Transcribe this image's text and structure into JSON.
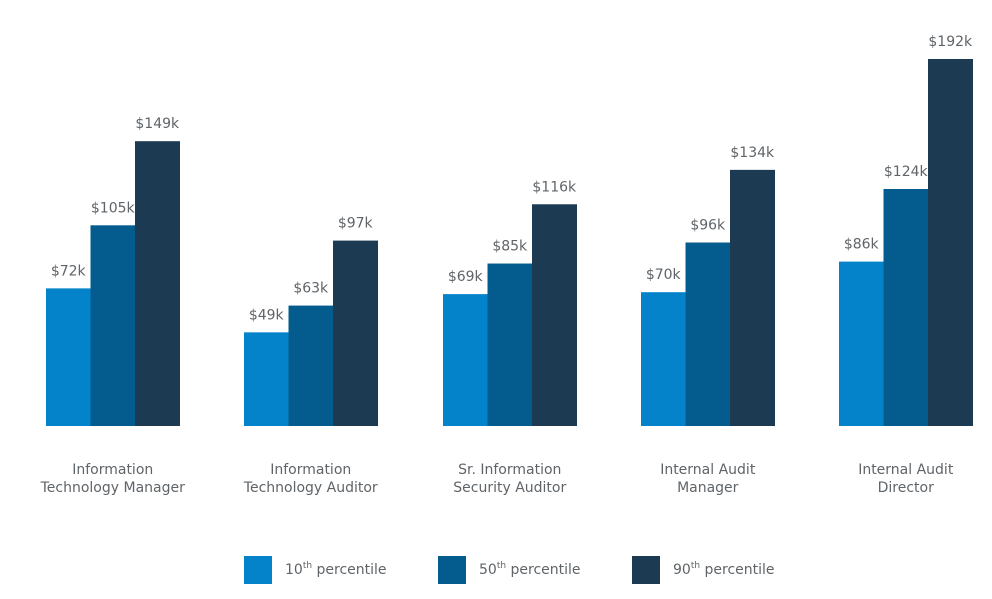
{
  "chart_data": {
    "type": "bar",
    "categories": [
      [
        "Information",
        "Technology Manager"
      ],
      [
        "Information",
        "Technology Auditor"
      ],
      [
        "Sr. Information",
        "Security Auditor"
      ],
      [
        "Internal Audit",
        "Manager"
      ],
      [
        "Internal Audit",
        "Director"
      ]
    ],
    "series": [
      {
        "name": "10th percentile",
        "legend_ordinal": "10",
        "legend_suffix": "th",
        "legend_word": "percentile",
        "color": "#0583ca",
        "values": [
          72,
          49,
          69,
          70,
          86
        ],
        "labels": [
          "$72k",
          "$49k",
          "$69k",
          "$70k",
          "$86k"
        ]
      },
      {
        "name": "50th percentile",
        "legend_ordinal": "50",
        "legend_suffix": "th",
        "legend_word": "percentile",
        "color": "#045c8e",
        "values": [
          105,
          63,
          85,
          96,
          124
        ],
        "labels": [
          "$105k",
          "$63k",
          "$85k",
          "$96k",
          "$124k"
        ]
      },
      {
        "name": "90th percentile",
        "legend_ordinal": "90",
        "legend_suffix": "th",
        "legend_word": "percentile",
        "color": "#1c3a52",
        "values": [
          149,
          97,
          116,
          134,
          192
        ],
        "labels": [
          "$149k",
          "$97k",
          "$116k",
          "$134k",
          "$192k"
        ]
      }
    ],
    "ylim": [
      0,
      192
    ],
    "grid": false,
    "legend_position": "bottom"
  }
}
